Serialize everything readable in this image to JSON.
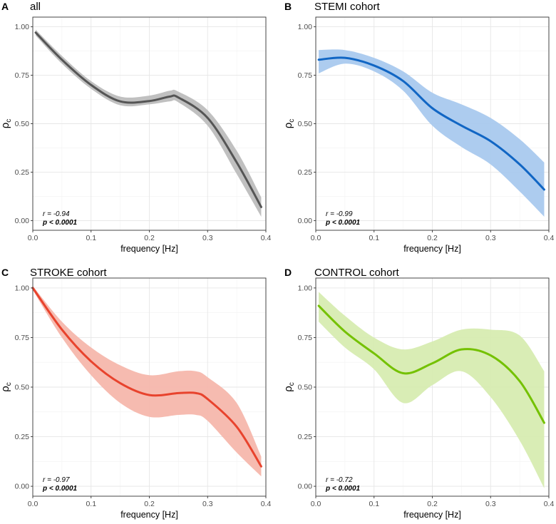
{
  "chart_data": [
    {
      "type": "line",
      "panel_letter": "A",
      "title": "all",
      "xlabel": "frequency [Hz]",
      "ylabel": "ρ",
      "ylabel_subscript": "c",
      "xlim": [
        0,
        0.4
      ],
      "ylim": [
        -0.05,
        1.05
      ],
      "xticks": [
        "0.0",
        "0.1",
        "0.2",
        "0.3",
        "0.4"
      ],
      "yticks": [
        "0.00",
        "0.25",
        "0.50",
        "0.75",
        "1.00"
      ],
      "color": "#555555",
      "band_color": "#bdbdbd",
      "x": [
        0.005,
        0.05,
        0.1,
        0.15,
        0.2,
        0.235,
        0.25,
        0.3,
        0.35,
        0.392
      ],
      "values": [
        0.97,
        0.83,
        0.7,
        0.615,
        0.617,
        0.64,
        0.635,
        0.53,
        0.3,
        0.07
      ],
      "lower": [
        0.955,
        0.81,
        0.68,
        0.595,
        0.6,
        0.615,
        0.61,
        0.49,
        0.24,
        0.02
      ],
      "upper": [
        0.985,
        0.85,
        0.72,
        0.64,
        0.645,
        0.67,
        0.665,
        0.57,
        0.36,
        0.12
      ],
      "annotation": {
        "r": "r = -0.94",
        "p": "p < 0.0001"
      }
    },
    {
      "type": "line",
      "panel_letter": "B",
      "title": "STEMI cohort",
      "xlabel": "frequency [Hz]",
      "ylabel": "ρ",
      "ylabel_subscript": "c",
      "xlim": [
        0,
        0.4
      ],
      "ylim": [
        -0.05,
        1.05
      ],
      "xticks": [
        "0.0",
        "0.1",
        "0.2",
        "0.3",
        "0.4"
      ],
      "yticks": [
        "0.00",
        "0.25",
        "0.50",
        "0.75",
        "1.00"
      ],
      "color": "#1166c4",
      "band_color": "#a9c9ee",
      "x": [
        0.005,
        0.05,
        0.1,
        0.15,
        0.2,
        0.25,
        0.3,
        0.35,
        0.392
      ],
      "values": [
        0.83,
        0.84,
        0.8,
        0.72,
        0.58,
        0.49,
        0.41,
        0.29,
        0.16
      ],
      "lower": [
        0.76,
        0.81,
        0.77,
        0.67,
        0.49,
        0.38,
        0.29,
        0.15,
        0.02
      ],
      "upper": [
        0.88,
        0.88,
        0.84,
        0.77,
        0.66,
        0.6,
        0.53,
        0.42,
        0.3
      ],
      "annotation": {
        "r": "r = -0.99",
        "p": "p < 0.0001"
      }
    },
    {
      "type": "line",
      "panel_letter": "C",
      "title": "STROKE cohort",
      "xlabel": "frequency [Hz]",
      "ylabel": "ρ",
      "ylabel_subscript": "c",
      "xlim": [
        0,
        0.4
      ],
      "ylim": [
        -0.05,
        1.05
      ],
      "xticks": [
        "0.0",
        "0.1",
        "0.2",
        "0.3",
        "0.4"
      ],
      "yticks": [
        "0.00",
        "0.25",
        "0.50",
        "0.75",
        "1.00"
      ],
      "color": "#e8432d",
      "band_color": "#f6b7ac",
      "x": [
        0.0,
        0.05,
        0.1,
        0.15,
        0.2,
        0.25,
        0.28,
        0.3,
        0.35,
        0.392
      ],
      "values": [
        1.0,
        0.79,
        0.63,
        0.52,
        0.46,
        0.47,
        0.47,
        0.44,
        0.3,
        0.1
      ],
      "lower": [
        0.99,
        0.75,
        0.56,
        0.42,
        0.35,
        0.36,
        0.36,
        0.33,
        0.17,
        0.05
      ],
      "upper": [
        1.01,
        0.83,
        0.7,
        0.61,
        0.56,
        0.58,
        0.58,
        0.55,
        0.42,
        0.15
      ],
      "annotation": {
        "r": "r = -0.97",
        "p": "p < 0.0001"
      }
    },
    {
      "type": "line",
      "panel_letter": "D",
      "title": "CONTROL cohort",
      "xlabel": "frequency [Hz]",
      "ylabel": "ρ",
      "ylabel_subscript": "c",
      "xlim": [
        0,
        0.4
      ],
      "ylim": [
        -0.05,
        1.05
      ],
      "xticks": [
        "0.0",
        "0.1",
        "0.2",
        "0.3",
        "0.4"
      ],
      "yticks": [
        "0.00",
        "0.25",
        "0.50",
        "0.75",
        "1.00"
      ],
      "color": "#74c100",
      "band_color": "#d7ecb1",
      "x": [
        0.005,
        0.05,
        0.1,
        0.15,
        0.2,
        0.25,
        0.3,
        0.35,
        0.392
      ],
      "values": [
        0.91,
        0.78,
        0.67,
        0.57,
        0.62,
        0.69,
        0.66,
        0.53,
        0.32
      ],
      "lower": [
        0.83,
        0.7,
        0.59,
        0.42,
        0.51,
        0.58,
        0.45,
        0.23,
        -0.01
      ],
      "upper": [
        0.98,
        0.86,
        0.75,
        0.69,
        0.73,
        0.79,
        0.79,
        0.76,
        0.58
      ],
      "annotation": {
        "r": "r = -0.72",
        "p": "p < 0.0001"
      }
    }
  ]
}
